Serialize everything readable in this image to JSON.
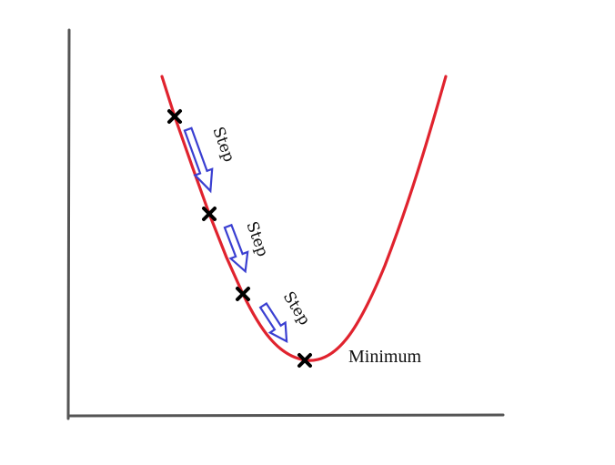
{
  "colors": {
    "axis": "#555555",
    "curve": "#e0232e",
    "marker": "#000000",
    "arrow": "#3a3fd1",
    "text": "#111111"
  },
  "steps": [
    {
      "label": "Step"
    },
    {
      "label": "Step"
    },
    {
      "label": "Step"
    }
  ],
  "minimum": {
    "label": "Minimum"
  },
  "markers": [
    {
      "icon": "cross-marker"
    },
    {
      "icon": "cross-marker"
    },
    {
      "icon": "cross-marker"
    },
    {
      "icon": "cross-marker"
    }
  ]
}
